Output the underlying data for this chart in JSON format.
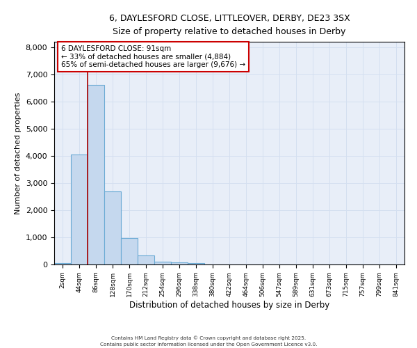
{
  "title_line1": "6, DAYLESFORD CLOSE, LITTLEOVER, DERBY, DE23 3SX",
  "title_line2": "Size of property relative to detached houses in Derby",
  "xlabel": "Distribution of detached houses by size in Derby",
  "ylabel": "Number of detached properties",
  "bar_color": "#c5d8ee",
  "bar_edge_color": "#6aaad4",
  "grid_color": "#d4dff0",
  "background_color": "#e8eef8",
  "fig_background": "#ffffff",
  "categories": [
    "2sqm",
    "44sqm",
    "86sqm",
    "128sqm",
    "170sqm",
    "212sqm",
    "254sqm",
    "296sqm",
    "338sqm",
    "380sqm",
    "422sqm",
    "464sqm",
    "506sqm",
    "547sqm",
    "589sqm",
    "631sqm",
    "673sqm",
    "715sqm",
    "757sqm",
    "799sqm",
    "841sqm"
  ],
  "bar_values": [
    50,
    4050,
    6620,
    2680,
    980,
    330,
    110,
    70,
    50,
    0,
    0,
    0,
    0,
    0,
    0,
    0,
    0,
    0,
    0,
    0,
    0
  ],
  "ylim": [
    0,
    8200
  ],
  "yticks": [
    0,
    1000,
    2000,
    3000,
    4000,
    5000,
    6000,
    7000,
    8000
  ],
  "property_line_x": 1.5,
  "property_line_color": "#aa0000",
  "annotation_text": "6 DAYLESFORD CLOSE: 91sqm\n← 33% of detached houses are smaller (4,884)\n65% of semi-detached houses are larger (9,676) →",
  "annotation_box_color": "#ffffff",
  "annotation_box_edge_color": "#cc0000",
  "footer_line1": "Contains HM Land Registry data © Crown copyright and database right 2025.",
  "footer_line2": "Contains public sector information licensed under the Open Government Licence v3.0."
}
